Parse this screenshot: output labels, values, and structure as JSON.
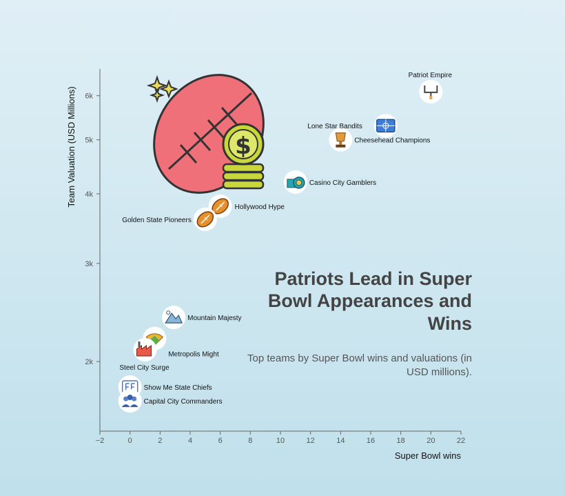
{
  "chart_data": {
    "type": "scatter",
    "title": "Patriots Lead in Super Bowl Appearances and Wins",
    "subtitle": "Top teams by Super Bowl wins and valuations (in USD millions).",
    "xlabel": "Super Bowl wins",
    "ylabel": "Team Valuation (USD Millions)",
    "xlim": [
      -2,
      22
    ],
    "ylim": [
      1500,
      6700
    ],
    "yscale": "log",
    "xticks": [
      -2,
      0,
      2,
      4,
      6,
      8,
      10,
      12,
      14,
      16,
      18,
      20,
      22
    ],
    "xtick_labels": [
      "−2",
      "0",
      "2",
      "4",
      "6",
      "8",
      "10",
      "12",
      "14",
      "16",
      "18",
      "20",
      "22"
    ],
    "yticks": [
      2000,
      3000,
      4000,
      5000,
      6000
    ],
    "ytick_labels": [
      "2k",
      "3k",
      "4k",
      "5k",
      "6k"
    ],
    "grid": false,
    "points": [
      {
        "team": "Patriot Empire",
        "x": 20,
        "y": 6100,
        "icon": "goalpost-icon"
      },
      {
        "team": "Lone Star Bandits",
        "x": 17,
        "y": 5300,
        "icon": "stadium-icon"
      },
      {
        "team": "Cheesehead Champions",
        "x": 14,
        "y": 5000,
        "icon": "trophy-icon"
      },
      {
        "team": "Casino City Gamblers",
        "x": 11,
        "y": 4200,
        "icon": "casino-chips-icon"
      },
      {
        "team": "Hollywood Hype",
        "x": 6,
        "y": 3800,
        "icon": "football-icon"
      },
      {
        "team": "Golden State Pioneers",
        "x": 5,
        "y": 3600,
        "icon": "football-icon"
      },
      {
        "team": "Mountain Majesty",
        "x": 3,
        "y": 2400,
        "icon": "mountain-icon"
      },
      {
        "team": "Metropolis Might",
        "x": 2,
        "y": 2200,
        "icon": "baseball-field-icon"
      },
      {
        "team": "Steel City Surge",
        "x": 1,
        "y": 2100,
        "icon": "factory-icon"
      },
      {
        "team": "Show Me State Chiefs",
        "x": 0,
        "y": 1800,
        "icon": "flag-icon"
      },
      {
        "team": "Capital City Commanders",
        "x": 0,
        "y": 1700,
        "icon": "team-icon"
      }
    ]
  },
  "decoration": {
    "icon": "football-money-icon"
  },
  "colors": {
    "axis": "#666666",
    "football": "#f07079",
    "coin": "#c8d83a"
  }
}
